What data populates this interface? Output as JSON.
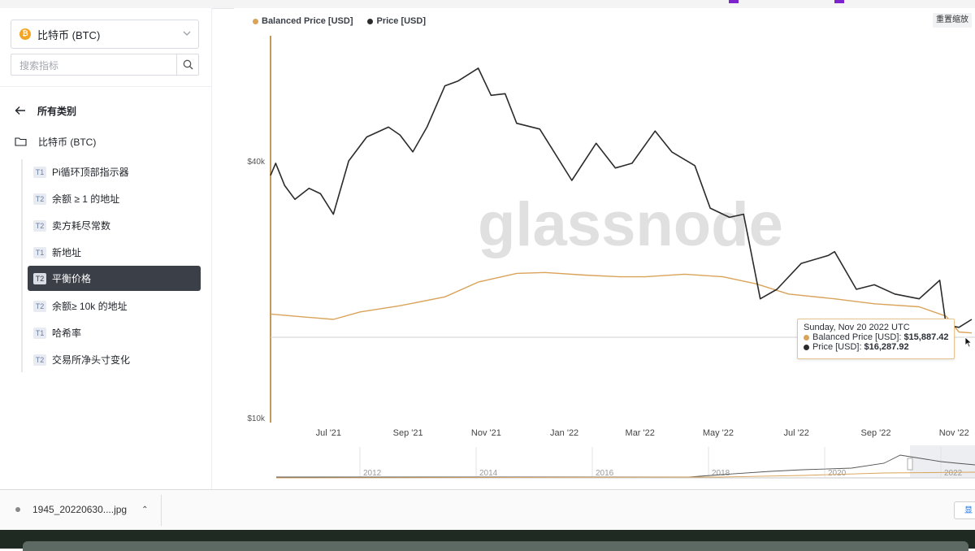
{
  "sidebar": {
    "asset": {
      "label": "比特币 (BTC)",
      "icon": "bitcoin-icon"
    },
    "search": {
      "placeholder": "搜索指标",
      "icon": "search-icon"
    },
    "back": {
      "label": "所有类别",
      "icon": "arrow-left-icon"
    },
    "category": {
      "label": "比特币 (BTC)",
      "icon": "folder-icon"
    },
    "items": [
      {
        "tier": "T1",
        "label": "Pi循环顶部指示器"
      },
      {
        "tier": "T2",
        "label": "余额 ≥ 1 的地址"
      },
      {
        "tier": "T2",
        "label": "卖方耗尽常数"
      },
      {
        "tier": "T1",
        "label": "新地址"
      },
      {
        "tier": "T2",
        "label": "平衡价格",
        "active": true
      },
      {
        "tier": "T2",
        "label": "余额≥ 10k 的地址"
      },
      {
        "tier": "T1",
        "label": "哈希率"
      },
      {
        "tier": "T2",
        "label": "交易所净头寸变化"
      }
    ]
  },
  "toolbar": {
    "reset_zoom_label": "重置缩放"
  },
  "watermark": "glassnode",
  "tooltip": {
    "date": "Sunday, Nov 20 2022 UTC",
    "rows": [
      {
        "label": "Balanced Price [USD]:",
        "value": "$15,887.42",
        "color": "#d9a35a"
      },
      {
        "label": "Price [USD]:",
        "value": "$16,287.92",
        "color": "#2b2b2b"
      }
    ]
  },
  "navigator": {
    "year_labels": [
      "2012",
      "2014",
      "2016",
      "2018",
      "2020",
      "2022"
    ]
  },
  "chart_data": {
    "type": "line",
    "y_scale": "log",
    "ylim": [
      10000,
      80000
    ],
    "yticks": [
      {
        "value": 10000,
        "label": "$10k"
      },
      {
        "value": 40000,
        "label": "$40k"
      }
    ],
    "xticks": [
      "Jul '21",
      "Sep '21",
      "Nov '21",
      "Jan '22",
      "Mar '22",
      "May '22",
      "Jul '22",
      "Sep '22",
      "Nov '22"
    ],
    "xlim": [
      "2021-06-01",
      "2022-11-30"
    ],
    "legend_position": "top-left",
    "grid": false,
    "series": [
      {
        "name": "Balanced Price [USD]",
        "color": "#d9a35a",
        "points": [
          [
            "2021-06-01",
            17500
          ],
          [
            "2021-06-20",
            17300
          ],
          [
            "2021-07-10",
            17100
          ],
          [
            "2021-07-20",
            17000
          ],
          [
            "2021-08-10",
            17700
          ],
          [
            "2021-09-10",
            18300
          ],
          [
            "2021-10-15",
            19200
          ],
          [
            "2021-11-10",
            20800
          ],
          [
            "2021-12-10",
            21800
          ],
          [
            "2022-01-01",
            21900
          ],
          [
            "2022-02-01",
            21600
          ],
          [
            "2022-03-01",
            21400
          ],
          [
            "2022-03-20",
            21400
          ],
          [
            "2022-04-20",
            21700
          ],
          [
            "2022-05-20",
            21400
          ],
          [
            "2022-06-15",
            20600
          ],
          [
            "2022-07-10",
            19500
          ],
          [
            "2022-08-15",
            19000
          ],
          [
            "2022-09-15",
            18500
          ],
          [
            "2022-10-20",
            18200
          ],
          [
            "2022-11-10",
            17300
          ],
          [
            "2022-11-20",
            15887.42
          ],
          [
            "2022-11-30",
            15800
          ]
        ]
      },
      {
        "name": "Price [USD]",
        "color": "#2b2b2b",
        "points": [
          [
            "2021-06-01",
            37000
          ],
          [
            "2021-06-05",
            39500
          ],
          [
            "2021-06-12",
            35000
          ],
          [
            "2021-06-20",
            32500
          ],
          [
            "2021-07-01",
            34500
          ],
          [
            "2021-07-10",
            33500
          ],
          [
            "2021-07-20",
            30000
          ],
          [
            "2021-08-01",
            40000
          ],
          [
            "2021-08-15",
            45500
          ],
          [
            "2021-09-01",
            48000
          ],
          [
            "2021-09-10",
            46000
          ],
          [
            "2021-09-20",
            42000
          ],
          [
            "2021-10-01",
            48000
          ],
          [
            "2021-10-15",
            60000
          ],
          [
            "2021-10-25",
            61500
          ],
          [
            "2021-11-10",
            66000
          ],
          [
            "2021-11-20",
            57000
          ],
          [
            "2021-12-01",
            57500
          ],
          [
            "2021-12-10",
            49000
          ],
          [
            "2021-12-28",
            47500
          ],
          [
            "2022-01-05",
            43500
          ],
          [
            "2022-01-22",
            36000
          ],
          [
            "2022-02-10",
            44000
          ],
          [
            "2022-02-25",
            38500
          ],
          [
            "2022-03-10",
            39500
          ],
          [
            "2022-03-28",
            47000
          ],
          [
            "2022-04-10",
            42000
          ],
          [
            "2022-04-28",
            39000
          ],
          [
            "2022-05-10",
            31000
          ],
          [
            "2022-05-25",
            29500
          ],
          [
            "2022-06-05",
            30000
          ],
          [
            "2022-06-18",
            19000
          ],
          [
            "2022-07-01",
            20000
          ],
          [
            "2022-07-20",
            23000
          ],
          [
            "2022-08-10",
            24000
          ],
          [
            "2022-08-15",
            24500
          ],
          [
            "2022-09-01",
            20000
          ],
          [
            "2022-09-15",
            20500
          ],
          [
            "2022-10-01",
            19500
          ],
          [
            "2022-10-20",
            19000
          ],
          [
            "2022-11-05",
            21000
          ],
          [
            "2022-11-10",
            16500
          ],
          [
            "2022-11-20",
            16287.92
          ],
          [
            "2022-11-30",
            17000
          ]
        ]
      }
    ]
  }
}
